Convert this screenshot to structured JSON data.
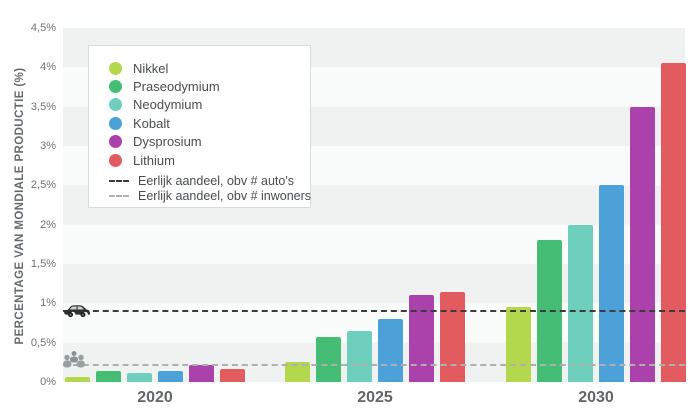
{
  "chart_data": {
    "type": "bar",
    "title": "",
    "ylabel": "PERCENTAGE VAN MONDIALE PRODUCTIE (%)",
    "xlabel": "",
    "categories": [
      "2020",
      "2025",
      "2030"
    ],
    "series": [
      {
        "name": "Nikkel",
        "color": "#b3d84e",
        "values": [
          0.07,
          0.25,
          0.95
        ]
      },
      {
        "name": "Praseodymium",
        "color": "#46bd74",
        "values": [
          0.14,
          0.57,
          1.8
        ]
      },
      {
        "name": "Neodymium",
        "color": "#6fcfbd",
        "values": [
          0.12,
          0.65,
          2.0
        ]
      },
      {
        "name": "Kobalt",
        "color": "#4ba1d8",
        "values": [
          0.14,
          0.8,
          2.5
        ]
      },
      {
        "name": "Dysprosium",
        "color": "#ab42ab",
        "values": [
          0.21,
          1.1,
          3.5
        ]
      },
      {
        "name": "Lithium",
        "color": "#e25c5f",
        "values": [
          0.16,
          1.14,
          4.05
        ]
      }
    ],
    "reference_lines": [
      {
        "label": "Eerlijk aandeel, obv # auto's",
        "value": 0.9,
        "color": "#3c3c3c",
        "style": "dashed",
        "icon": "car-icon"
      },
      {
        "label": "Eerlijk aandeel, obv # inwoners",
        "value": 0.21,
        "color": "#aeb0b0",
        "style": "dashed",
        "icon": "people-icon"
      }
    ],
    "ylim": [
      0,
      4.5
    ],
    "yticks": [
      {
        "value": 4.5,
        "label": "4,5%"
      },
      {
        "value": 4.0,
        "label": "4%"
      },
      {
        "value": 3.5,
        "label": "3,5%"
      },
      {
        "value": 3.0,
        "label": "3%"
      },
      {
        "value": 2.5,
        "label": "2,5%"
      },
      {
        "value": 2.0,
        "label": "2%"
      },
      {
        "value": 1.5,
        "label": "1,5%"
      },
      {
        "value": 1.0,
        "label": "1%"
      },
      {
        "value": 0.5,
        "label": "0,5%"
      },
      {
        "value": 0.0,
        "label": "0%"
      }
    ],
    "legend_position": "top-left",
    "grid": "banded-rows"
  }
}
